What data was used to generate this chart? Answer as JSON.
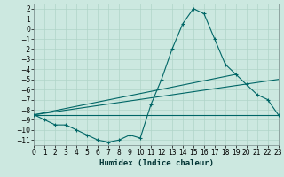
{
  "xlabel": "Humidex (Indice chaleur)",
  "bg_color": "#cce8e0",
  "grid_color": "#b0d4c8",
  "line_color": "#006666",
  "main_series": {
    "x": [
      0,
      1,
      2,
      3,
      4,
      5,
      6,
      7,
      8,
      9,
      10,
      11,
      12,
      13,
      14,
      15,
      16,
      17,
      18,
      19,
      20,
      21,
      22,
      23
    ],
    "y": [
      -8.5,
      -9.0,
      -9.5,
      -9.5,
      -10.0,
      -10.5,
      -11.0,
      -11.2,
      -11.0,
      -10.5,
      -10.8,
      -7.5,
      -5.0,
      -2.0,
      0.5,
      2.0,
      1.5,
      -1.0,
      -3.5,
      -4.5,
      -5.5,
      -6.5,
      -7.0,
      -8.5
    ]
  },
  "straight_lines": [
    {
      "x": [
        0,
        23
      ],
      "y": [
        -8.5,
        -8.5
      ]
    },
    {
      "x": [
        0,
        23
      ],
      "y": [
        -8.5,
        -5.0
      ]
    },
    {
      "x": [
        0,
        19
      ],
      "y": [
        -8.5,
        -4.5
      ]
    }
  ],
  "xlim": [
    0,
    23
  ],
  "ylim": [
    -11.5,
    2.5
  ],
  "yticks": [
    2,
    1,
    0,
    -1,
    -2,
    -3,
    -4,
    -5,
    -6,
    -7,
    -8,
    -9,
    -10,
    -11
  ],
  "xticks": [
    0,
    1,
    2,
    3,
    4,
    5,
    6,
    7,
    8,
    9,
    10,
    11,
    12,
    13,
    14,
    15,
    16,
    17,
    18,
    19,
    20,
    21,
    22,
    23
  ],
  "xlabel_fontsize": 6.5,
  "tick_fontsize": 5.5
}
